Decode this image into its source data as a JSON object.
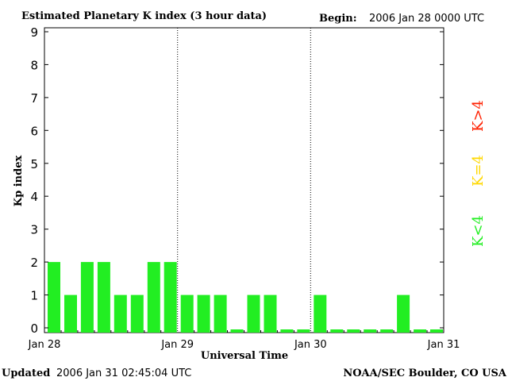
{
  "header": {
    "title": "Estimated Planetary K index (3 hour data)",
    "begin_label": "Begin:",
    "begin_value": "2006 Jan 28 0000 UTC"
  },
  "footer": {
    "updated_label": "Updated",
    "updated_value": "2006 Jan 31 02:45:04 UTC",
    "source": "NOAA/SEC Boulder, CO USA"
  },
  "legend": {
    "items": [
      {
        "label": "K>4",
        "color": "#ff2000"
      },
      {
        "label": "K=4",
        "color": "#ffd800"
      },
      {
        "label": "K<4",
        "color": "#22ee22"
      }
    ]
  },
  "chart_data": {
    "type": "bar",
    "title": "Estimated Planetary K index (3 hour data)",
    "xlabel": "Universal Time",
    "ylabel": "Kp index",
    "ylim": [
      0,
      9
    ],
    "yticks": [
      "0",
      "1",
      "2",
      "3",
      "4",
      "5",
      "6",
      "7",
      "8",
      "9"
    ],
    "x_ticks": [
      "Jan 28",
      "Jan 29",
      "Jan 30",
      "Jan 31"
    ],
    "interval_hours": 3,
    "values": [
      2,
      1,
      2,
      2,
      1,
      1,
      2,
      2,
      1,
      1,
      1,
      0,
      1,
      1,
      0,
      0,
      1,
      0,
      0,
      0,
      0,
      1,
      0,
      0
    ],
    "bar_color": "#22ee22",
    "day_separators": [
      "Jan 29",
      "Jan 30"
    ],
    "grid": false
  }
}
